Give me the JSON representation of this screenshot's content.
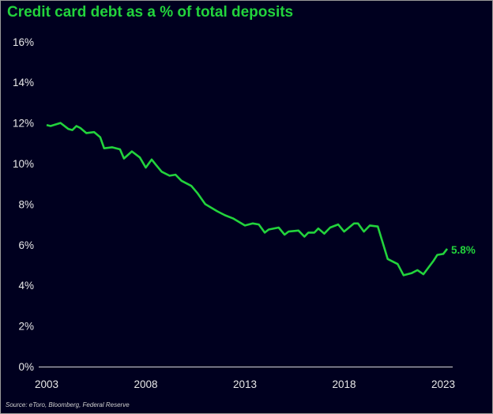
{
  "chart_data": {
    "type": "line",
    "title": "Credit card debt as a % of total deposits",
    "source": "Source: eToro, Bloomberg, Federal Reserve",
    "xlabel": "",
    "ylabel": "",
    "xlim": [
      2003,
      2023.2
    ],
    "ylim": [
      0,
      16
    ],
    "x_ticks": [
      "2003",
      "2008",
      "2013",
      "2018",
      "2023"
    ],
    "y_ticks": [
      "0%",
      "2%",
      "4%",
      "6%",
      "8%",
      "10%",
      "12%",
      "14%",
      "16%"
    ],
    "grid": false,
    "end_label": "5.8%",
    "line_color": "#22d33c",
    "background_color": "#00001f",
    "series": [
      {
        "x": [
          2003.0,
          2003.2,
          2003.7,
          2004.1,
          2004.3,
          2004.5,
          2004.7,
          2005.0,
          2005.4,
          2005.7,
          2005.9,
          2006.3,
          2006.7,
          2006.9,
          2007.3,
          2007.7,
          2008.0,
          2008.3,
          2008.5,
          2008.8,
          2009.2,
          2009.5,
          2009.8,
          2010.3,
          2010.6,
          2011.0,
          2011.6,
          2012.0,
          2012.4,
          2013.0,
          2013.4,
          2013.7,
          2014.0,
          2014.2,
          2014.7,
          2015.0,
          2015.2,
          2015.7,
          2016.0,
          2016.2,
          2016.5,
          2016.7,
          2017.0,
          2017.3,
          2017.7,
          2018.0,
          2018.5,
          2018.7,
          2019.0,
          2019.3,
          2019.7,
          2020.2,
          2020.7,
          2021.0,
          2021.4,
          2021.7,
          2022.0,
          2022.5,
          2022.7,
          2023.0,
          2023.2
        ],
        "y": [
          11.9,
          11.85,
          12.0,
          11.7,
          11.65,
          11.85,
          11.75,
          11.5,
          11.55,
          11.3,
          10.75,
          10.8,
          10.7,
          10.25,
          10.6,
          10.3,
          9.8,
          10.2,
          9.95,
          9.6,
          9.4,
          9.45,
          9.15,
          8.9,
          8.55,
          8.0,
          7.65,
          7.45,
          7.3,
          6.95,
          7.05,
          7.0,
          6.6,
          6.75,
          6.85,
          6.5,
          6.65,
          6.7,
          6.4,
          6.6,
          6.6,
          6.8,
          6.55,
          6.85,
          7.0,
          6.65,
          7.05,
          7.05,
          6.65,
          6.95,
          6.9,
          5.3,
          5.05,
          4.5,
          4.6,
          4.75,
          4.55,
          5.2,
          5.5,
          5.55,
          5.8
        ]
      }
    ]
  }
}
